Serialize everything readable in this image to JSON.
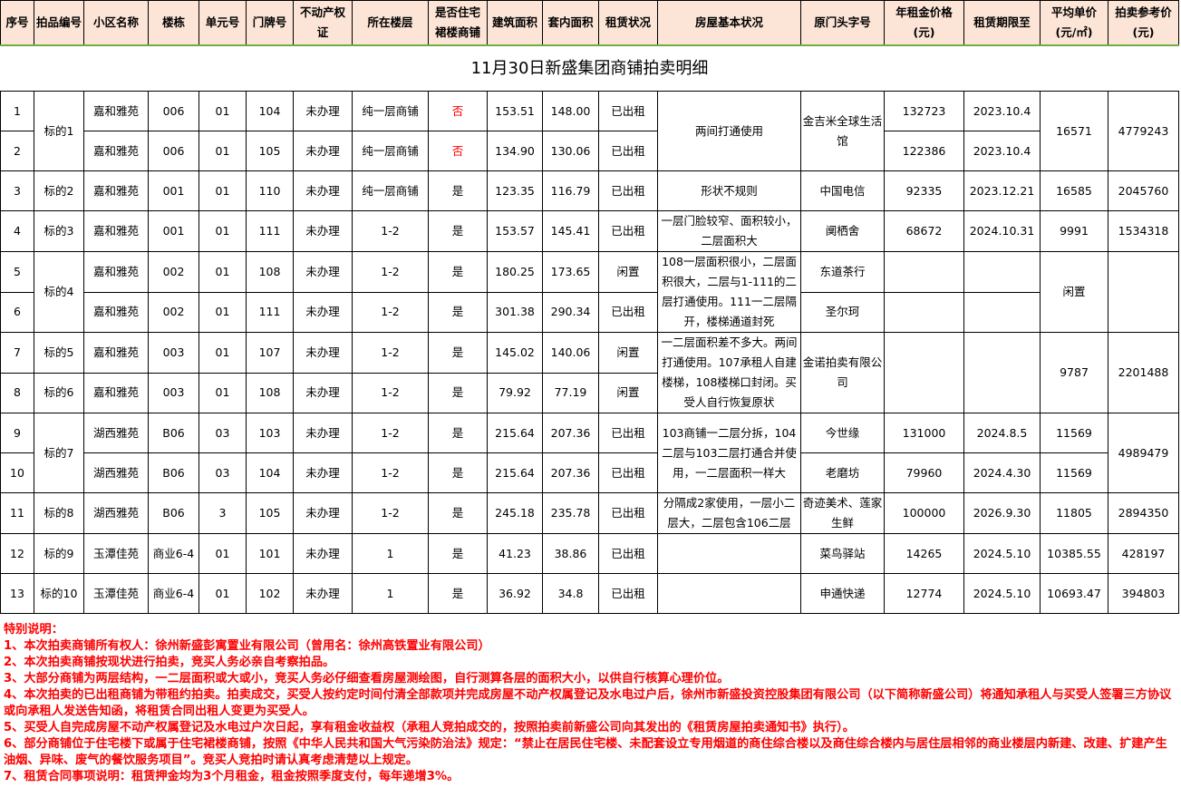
{
  "title": "11月30日新盛集团商铺拍卖明细",
  "headers": [
    "序号",
    "拍品编号",
    "小区名称",
    "楼栋",
    "单元号",
    "门牌号",
    "不动产权证",
    "所在楼层",
    "是否住宅裙楼商铺",
    "建筑面积",
    "套内面积",
    "租赁状况",
    "房屋基本状况",
    "原门头字号",
    "年租金价格(元)",
    "租赁期限至",
    "平均单价(元/㎡)",
    "拍卖参考价(元)"
  ],
  "rows": [
    [
      "1",
      "标的1",
      "嘉和雅苑",
      "006",
      "01",
      "104",
      "未办理",
      "纯一层商铺",
      "否",
      "153.51",
      "148.00",
      "已出租",
      "两间打通使用",
      "金吉米全球生活馆",
      "132723",
      "2023.10.4",
      "16571",
      "4779243"
    ],
    [
      "2",
      null,
      "嘉和雅苑",
      "006",
      "01",
      "105",
      "未办理",
      "纯一层商铺",
      "否",
      "134.90",
      "130.06",
      "已出租",
      null,
      null,
      "122386",
      "2023.10.4",
      null,
      null
    ],
    [
      "3",
      "标的2",
      "嘉和雅苑",
      "001",
      "01",
      "110",
      "未办理",
      "纯一层商铺",
      "是",
      "123.35",
      "116.79",
      "已出租",
      "形状不规则",
      "中国电信",
      "92335",
      "2023.12.21",
      "16585",
      "2045760"
    ],
    [
      "4",
      "标的3",
      "嘉和雅苑",
      "001",
      "01",
      "111",
      "未办理",
      "1-2",
      "是",
      "153.57",
      "145.41",
      "已出租",
      "一层门脸较窄、面积较小，二层面积大",
      "阒栖舍",
      "68672",
      "2024.10.31",
      "9991",
      "1534318"
    ],
    [
      "5",
      "标的4",
      "嘉和雅苑",
      "002",
      "01",
      "108",
      "未办理",
      "1-2",
      "是",
      "180.25",
      "173.65",
      "闲置",
      "108一层面积很小，二层面积很大，二层与1-111的二层打通使用。111一二层隔开，楼梯通道封死",
      "东道茶行",
      "",
      "",
      "闲置",
      ""
    ],
    [
      "6",
      null,
      "嘉和雅苑",
      "002",
      "01",
      "111",
      "未办理",
      "1-2",
      "是",
      "301.38",
      "290.34",
      "已出租",
      null,
      "圣尔珂",
      "",
      "",
      null,
      null
    ],
    [
      "7",
      "标的5",
      "嘉和雅苑",
      "003",
      "01",
      "107",
      "未办理",
      "1-2",
      "是",
      "145.02",
      "140.06",
      "闲置",
      "一二层面积差不多大。两间打通使用。107承租人自建楼梯，108楼梯口封闭。买受人自行恢复原状",
      "金诺拍卖有限公司",
      "",
      "",
      "9787",
      "2201488"
    ],
    [
      "8",
      "标的6",
      "嘉和雅苑",
      "003",
      "01",
      "108",
      "未办理",
      "1-2",
      "是",
      "79.92",
      "77.19",
      "闲置",
      null,
      null,
      null,
      null,
      null,
      null
    ],
    [
      "9",
      "标的7",
      "湖西雅苑",
      "B06",
      "03",
      "103",
      "未办理",
      "1-2",
      "是",
      "215.64",
      "207.36",
      "已出租",
      "103商铺一二层分拆，104二层与103二层打通合并使用，一二层面积一样大",
      "今世缘",
      "131000",
      "2024.8.5",
      "11569",
      "4989479"
    ],
    [
      "10",
      null,
      "湖西雅苑",
      "B06",
      "03",
      "104",
      "未办理",
      "1-2",
      "是",
      "215.64",
      "207.36",
      "已出租",
      null,
      "老磨坊",
      "79960",
      "2024.4.30",
      "11569",
      null
    ],
    [
      "11",
      "标的8",
      "湖西雅苑",
      "B06",
      "3",
      "105",
      "未办理",
      "1-2",
      "是",
      "245.18",
      "235.78",
      "已出租",
      "分隔成2家使用，一层小二层大，二层包含106二层",
      "奇迹美术、莲家生鲜",
      "100000",
      "2026.9.30",
      "11805",
      "2894350"
    ],
    [
      "12",
      "标的9",
      "玉潭佳苑",
      "商业6-4",
      "01",
      "101",
      "未办理",
      "1",
      "是",
      "41.23",
      "38.86",
      "已出租",
      "",
      "菜鸟驿站",
      "14265",
      "2024.5.10",
      "10385.55",
      "428197"
    ],
    [
      "13",
      "标的10",
      "玉潭佳苑",
      "商业6-4",
      "01",
      "102",
      "未办理",
      "1",
      "是",
      "36.92",
      "34.8",
      "已出租",
      "",
      "申通快递",
      "12774",
      "2024.5.10",
      "10693.47",
      "394803"
    ]
  ],
  "notes": {
    "heading": "特别说明：",
    "items": [
      "1、本次拍卖商铺所有权人：徐州新盛彭寓置业有限公司（曾用名：徐州高铁置业有限公司）",
      "2、本次拍卖商铺按现状进行拍卖，竞买人务必亲自考察拍品。",
      "3、大部分商铺为两层结构，一二层面积或大或小，竞买人务必仔细查看房屋测绘图，自行测算各层的面积大小，以供自行核算心理价位。",
      "4、本次拍卖的已出租商铺为带租约拍卖。拍卖成交，买受人按约定时间付清全部款项并完成房屋不动产权属登记及水电过户后，徐州市新盛投资控股集团有限公司（以下简称新盛公司）将通知承租人与买受人签署三方协议或向承租人发送告知函，将租赁合同出租人变更为买受人。",
      "5、买受人自完成房屋不动产权属登记及水电过户次日起，享有租金收益权（承租人竞拍成交的，按照拍卖前新盛公司向其发出的《租赁房屋拍卖通知书》执行）。",
      "6、部分商铺位于住宅楼下或属于住宅裙楼商铺，按照《中华人民共和国大气污染防治法》规定：“禁止在居民住宅楼、未配套设立专用烟道的商住综合楼以及商住综合楼内与居住层相邻的商业楼层内新建、改建、扩建产生油烟、异味、废气的餐饮服务项目”。竞买人竞拍时请认真考虑清楚以上规定。",
      "7、租赁合同事项说明：租赁押金均为3个月租金，租金按照季度支付，每年递增3%。"
    ]
  },
  "colors": {
    "header_bg": "#fce4d6",
    "notes": "#ff0000",
    "negative": "#ff0000",
    "header_rule": "#70ad47"
  }
}
